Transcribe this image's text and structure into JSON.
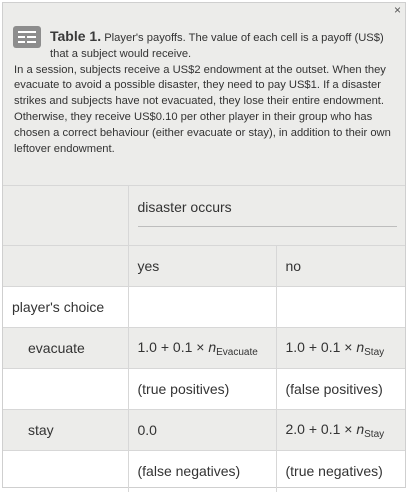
{
  "caption": {
    "title": "Table 1.",
    "lead": "Player's payoffs. The value of each cell is a payoff (US$) that a subject would receive.",
    "body": "In a session, subjects receive a US$2 endowment at the outset. When they evacuate to avoid a possible disaster, they need to pay US$1. If a disaster strikes and subjects have not evacuated, they lose their entire endowment. Otherwise, they receive US$0.10 per other player in their group who has chosen a correct behaviour (either evacuate or stay), in addition to their own leftover endowment.",
    "icon": "table-icon",
    "close": "×"
  },
  "table": {
    "column_header": "disaster occurs",
    "sub_headers": [
      "yes",
      "no"
    ],
    "row_header": "player's choice",
    "rows": [
      {
        "label": "evacuate",
        "yes_formula": "1.0 + 0.1 × ",
        "yes_var": "n",
        "yes_sub": "Evacuate",
        "no_formula": "1.0 + 0.1 × ",
        "no_var": "n",
        "no_sub": "Stay",
        "yes_outcome": "(true positives)",
        "no_outcome": "(false positives)"
      },
      {
        "label": "stay",
        "yes_value": "0.0",
        "no_formula": "2.0 + 0.1 × ",
        "no_var": "n",
        "no_sub": "Stay",
        "yes_outcome": "(false negatives)",
        "no_outcome": "(true negatives)"
      }
    ]
  }
}
